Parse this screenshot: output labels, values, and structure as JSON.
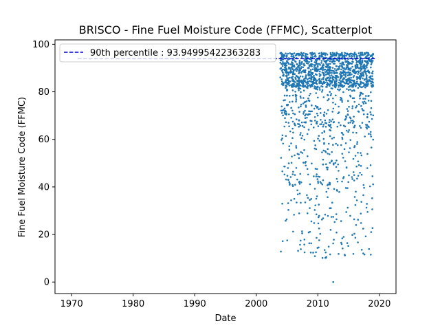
{
  "chart_data": {
    "type": "scatter",
    "title": "BRISCO - Fine Fuel Moisture Code (FFMC), Scatterplot",
    "xlabel": "Date",
    "ylabel": "Fine Fuel Moisture Code (FFMC)",
    "xlim": [
      1967.3,
      2022.7
    ],
    "ylim": [
      -4.85,
      101.85
    ],
    "x_ticks": [
      "1970",
      "1980",
      "1990",
      "2000",
      "2010",
      "2020"
    ],
    "x_tick_values": [
      1970,
      1980,
      1990,
      2000,
      2010,
      2020
    ],
    "y_ticks": [
      "0",
      "20",
      "40",
      "60",
      "80",
      "100"
    ],
    "y_tick_values": [
      0,
      20,
      40,
      60,
      80,
      100
    ],
    "grid": false,
    "legend_position": "upper-left",
    "point_color": "#1f77b4",
    "reference_line": {
      "label": "90th percentile : 93.94995422363283",
      "value": 93.94995422363283,
      "x_range": [
        1971,
        2019.5
      ],
      "color": "#0000cd",
      "style": "dashed"
    },
    "series": [
      {
        "name": "",
        "seasons": [
          2004.45,
          2005.45,
          2006.45,
          2007.45,
          2008.45,
          2009.45,
          2010.45,
          2011.45,
          2012.45,
          2013.45,
          2014.45,
          2015.45,
          2016.45,
          2017.45,
          2018.45
        ],
        "season_spread": 0.55,
        "points_per_season": 120,
        "value_range": [
          0,
          97
        ],
        "typical_range": [
          80,
          96
        ],
        "min_value": 0,
        "min_value_date": 2012.5
      }
    ]
  }
}
